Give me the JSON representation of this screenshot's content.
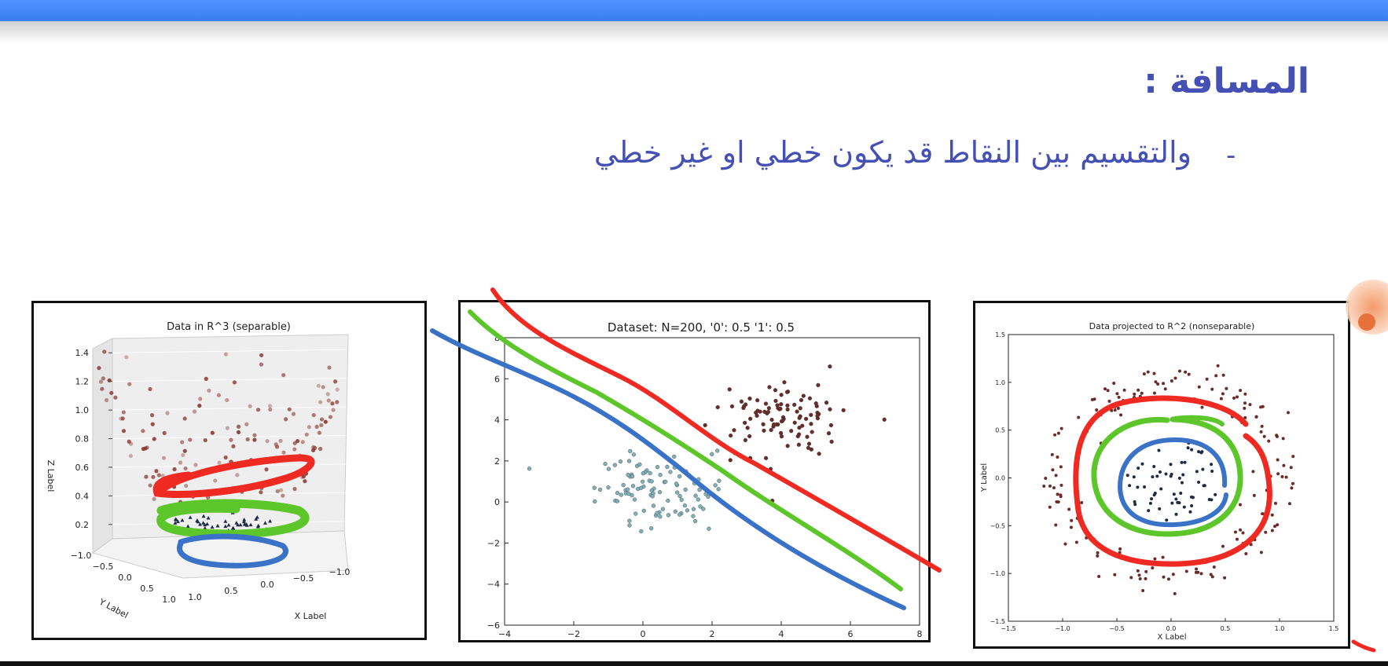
{
  "slide": {
    "heading": "المسافة :",
    "bullet_dash": "-",
    "bullet_text": "والتقسيم بين النقاط قد يكون خطي او غير خطي"
  },
  "colors": {
    "accent_text": "#4550b4",
    "topbar": "#4f93ff",
    "red_stroke": "#ee2a22",
    "green_stroke": "#5cc62a",
    "blue_stroke": "#3a72c8",
    "dark_points": "#6b2b26",
    "light_points": "#7fb2ba"
  },
  "chart_data": [
    {
      "type": "scatter",
      "title": "Data in R^3 (separable)",
      "xlabel": "X Label",
      "ylabel": "Y Label",
      "zlabel": "Z Label",
      "z_ticks": [
        "0.2",
        "0.4",
        "0.6",
        "0.8",
        "1.0",
        "1.2",
        "1.4"
      ],
      "x_ticks": [
        "1.0",
        "0.5",
        "0.0",
        "−0.5",
        "−1.0"
      ],
      "y_ticks": [
        "−1.0",
        "−0.5",
        "0.0",
        "0.5",
        "1.0"
      ],
      "zlim": [
        0.1,
        1.5
      ]
    },
    {
      "type": "scatter",
      "title": "Dataset: N=200, '0': 0.5 '1': 0.5",
      "xlim": [
        -4,
        8
      ],
      "ylim": [
        -6,
        8
      ],
      "x_ticks": [
        "−4",
        "−2",
        "0",
        "2",
        "4",
        "6",
        "8"
      ],
      "y_ticks": [
        "−6",
        "−4",
        "−2",
        "0",
        "2",
        "4",
        "6",
        "8"
      ],
      "series": [
        {
          "center": [
            0.5,
            0.5
          ],
          "spread": 0.9,
          "count": 100,
          "color": "#7fb2ba"
        },
        {
          "center": [
            4.0,
            4.0
          ],
          "spread": 0.9,
          "count": 100,
          "color": "#6b2b26"
        }
      ]
    },
    {
      "type": "scatter",
      "title": "Data projected to R^2 (nonseparable)",
      "xlabel": "X Label",
      "ylabel": "Y Label",
      "xlim": [
        -1.5,
        1.5
      ],
      "ylim": [
        -1.5,
        1.5
      ],
      "x_ticks": [
        "−1.5",
        "−1.0",
        "−0.5",
        "0.0",
        "0.5",
        "1.0",
        "1.5"
      ],
      "y_ticks": [
        "−1.5",
        "−1.0",
        "−0.5",
        "0.0",
        "0.5",
        "1.0",
        "1.5"
      ],
      "series": [
        {
          "shape": "ring",
          "radius": 1.0,
          "count": 180,
          "color": "#6b2b26"
        },
        {
          "shape": "disk",
          "radius": 0.45,
          "count": 60,
          "color": "#1f2a44"
        }
      ]
    }
  ]
}
